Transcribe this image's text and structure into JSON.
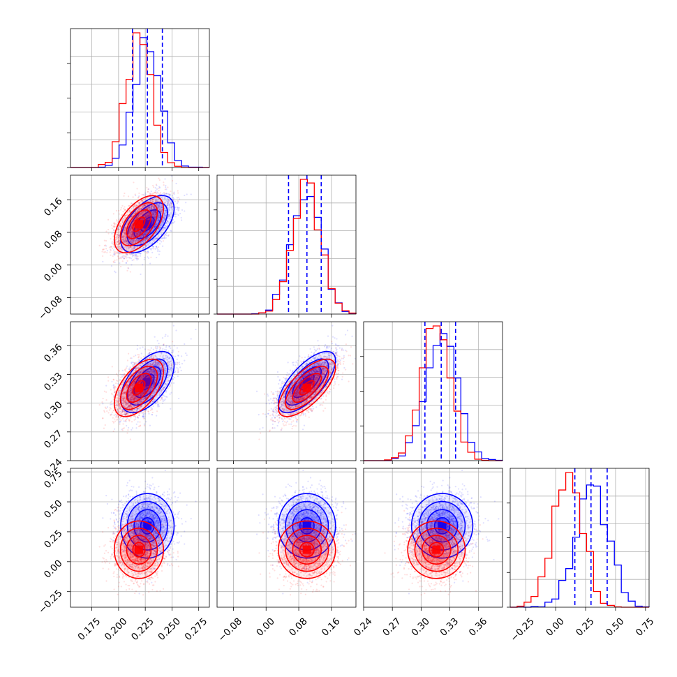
{
  "figure": {
    "colors": {
      "blue": "#0000ff",
      "red": "#ff0000",
      "grid": "#b0b0b0"
    },
    "grid": true,
    "num_parameters": 4,
    "parameter_labels": []
  },
  "chart_data": {
    "type": "corner",
    "title": "",
    "xlabel": "",
    "ylabel": "",
    "legend": false,
    "parameters": [
      {
        "range": [
          0.155,
          0.285
        ],
        "ticks": [
          0.175,
          0.2,
          0.225,
          0.25,
          0.275
        ],
        "tick_labels": [
          "0.175",
          "0.200",
          "0.225",
          "0.250",
          "0.275"
        ]
      },
      {
        "range": [
          -0.12,
          0.22
        ],
        "ticks": [
          -0.08,
          0.0,
          0.08,
          0.16
        ],
        "tick_labels": [
          "−0.08",
          "0.00",
          "0.08",
          "0.16"
        ]
      },
      {
        "range": [
          0.24,
          0.385
        ],
        "ticks": [
          0.24,
          0.27,
          0.3,
          0.33,
          0.36
        ],
        "tick_labels": [
          "0.24",
          "0.27",
          "0.30",
          "0.33",
          "0.36"
        ]
      },
      {
        "range": [
          -0.38,
          0.78
        ],
        "ticks": [
          -0.25,
          0.0,
          0.25,
          0.5,
          0.75
        ],
        "tick_labels": [
          "−0.25",
          "0.00",
          "0.25",
          "0.50",
          "0.75"
        ]
      }
    ],
    "series": [
      {
        "color": "#0000ff",
        "means": [
          0.227,
          0.1,
          0.322,
          0.3
        ],
        "sigmas": [
          0.0125,
          0.035,
          0.016,
          0.135
        ],
        "correlations": [
          [
            1,
            0.55,
            0.55,
            0
          ],
          [
            0.55,
            1,
            0.7,
            0
          ],
          [
            0.55,
            0.7,
            1,
            0
          ],
          [
            0,
            0,
            0,
            1
          ]
        ],
        "quantile_lines": [
          [
            0.213,
            0.227,
            0.241
          ],
          [
            0.055,
            0.1,
            0.135
          ],
          [
            0.304,
            0.321,
            0.336
          ],
          [
            0.16,
            0.295,
            0.43
          ]
        ]
      },
      {
        "color": "#ff0000",
        "means": [
          0.219,
          0.1,
          0.316,
          0.1
        ],
        "sigmas": [
          0.0115,
          0.035,
          0.015,
          0.12
        ],
        "correlations": [
          [
            1,
            0.55,
            0.55,
            0
          ],
          [
            0.55,
            1,
            0.7,
            0
          ],
          [
            0.55,
            0.7,
            1,
            0
          ],
          [
            0,
            0,
            0,
            1
          ]
        ],
        "quantile_lines": []
      }
    ]
  }
}
